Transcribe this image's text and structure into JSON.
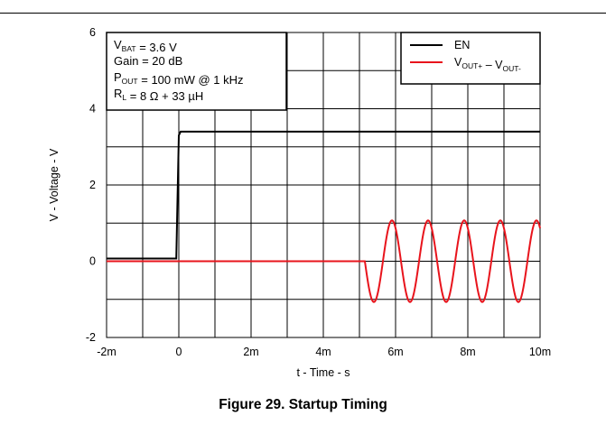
{
  "figure": {
    "caption": "Figure 29. Startup Timing"
  },
  "chart_data": {
    "type": "line",
    "xlabel": "t - Time - s",
    "ylabel": "V - Voltage - V",
    "xlim": [
      -0.002,
      0.01
    ],
    "ylim": [
      -2,
      6
    ],
    "x_ticks": [
      {
        "value": -0.002,
        "label": "-2m"
      },
      {
        "value": 0.0,
        "label": "0"
      },
      {
        "value": 0.002,
        "label": "2m"
      },
      {
        "value": 0.004,
        "label": "4m"
      },
      {
        "value": 0.006,
        "label": "6m"
      },
      {
        "value": 0.008,
        "label": "8m"
      },
      {
        "value": 0.01,
        "label": "10m"
      }
    ],
    "y_ticks": [
      {
        "value": -2,
        "label": "-2"
      },
      {
        "value": 0,
        "label": "0"
      },
      {
        "value": 2,
        "label": "2"
      },
      {
        "value": 4,
        "label": "4"
      },
      {
        "value": 6,
        "label": "6"
      }
    ],
    "grid": true,
    "x_grid": [
      -0.002,
      -0.001,
      0.0,
      0.001,
      0.002,
      0.003,
      0.004,
      0.005,
      0.006,
      0.007,
      0.008,
      0.009,
      0.01
    ],
    "y_grid": [
      -2,
      -1,
      0,
      1,
      2,
      3,
      4,
      5,
      6
    ],
    "legend": {
      "placement": "top-right"
    },
    "series": [
      {
        "name": "EN",
        "color": "#000000",
        "shape": "step",
        "points": [
          {
            "x": -0.002,
            "y": 0.07
          },
          {
            "x": -7e-05,
            "y": 0.07
          },
          {
            "x": 0.0,
            "y": 3.3
          },
          {
            "x": 5e-05,
            "y": 3.4
          },
          {
            "x": 0.01,
            "y": 3.4
          }
        ]
      },
      {
        "name": "VOUT+ – VOUT-",
        "color": "#e8141c",
        "shape": "burst-sine",
        "x_start": -0.002,
        "x_end": 0.01,
        "baseline": 0.0,
        "burst_start": 0.00515,
        "amplitude": 1.07,
        "frequency_hz": 1000,
        "phase_at_burst_start": "-sin (starts downward)"
      }
    ]
  },
  "annotation": {
    "lines": [
      {
        "parts": [
          {
            "t": "V"
          },
          {
            "t": "BAT",
            "sub": true
          },
          {
            "t": " = 3.6 V"
          }
        ]
      },
      {
        "parts": [
          {
            "t": "Gain = 20 dB"
          }
        ]
      },
      {
        "parts": [
          {
            "t": "P"
          },
          {
            "t": "OUT",
            "sub": true
          },
          {
            "t": " = 100 mW @ 1 kHz"
          }
        ]
      },
      {
        "parts": [
          {
            "t": "R"
          },
          {
            "t": "L",
            "sub": true
          },
          {
            "t": " = 8 Ω + 33 µH"
          }
        ]
      }
    ]
  },
  "legend_entries": [
    {
      "color": "#000000",
      "parts": [
        {
          "t": "EN"
        }
      ]
    },
    {
      "color": "#e8141c",
      "parts": [
        {
          "t": "V"
        },
        {
          "t": "OUT+",
          "sub": true
        },
        {
          "t": " – V"
        },
        {
          "t": "OUT-",
          "sub": true
        }
      ]
    }
  ]
}
